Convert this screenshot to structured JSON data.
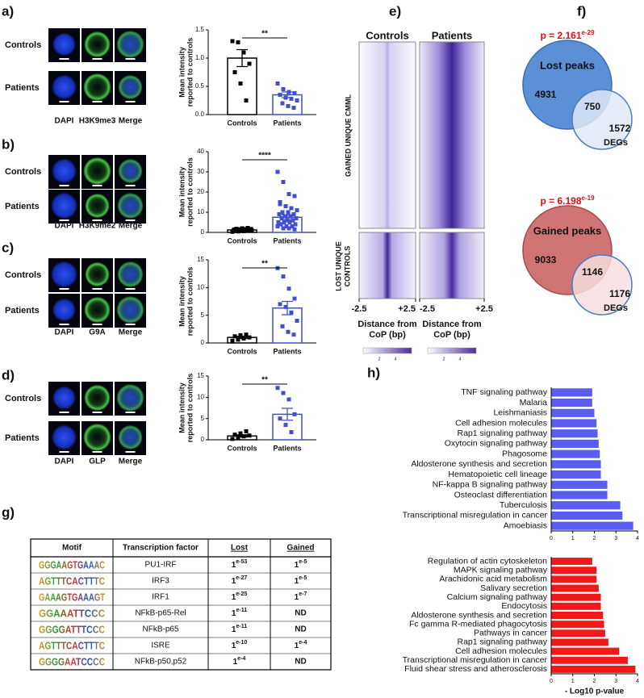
{
  "chart_data": [
    {
      "type": "bar",
      "panel": "a)",
      "ylabel": [
        "Mean intensity",
        "reported to controls"
      ],
      "categories": [
        "Controls",
        "Patients"
      ],
      "colors": [
        "#000000",
        "#3f4fd0"
      ],
      "values": [
        1.0,
        0.35
      ],
      "errors": [
        0.15,
        0.05
      ],
      "points": [
        [
          1.3,
          1.28,
          1.1,
          0.9,
          0.75,
          0.55,
          0.25
        ],
        [
          0.55,
          0.45,
          0.4,
          0.38,
          0.35,
          0.3,
          0.28,
          0.25,
          0.2,
          0.15,
          0.12
        ]
      ],
      "ylim": [
        0,
        1.5
      ],
      "yticks": [
        {
          "value": 0,
          "label": "0.0"
        },
        0.5,
        {
          "value": 1,
          "label": "1.0"
        },
        1.5
      ],
      "annotation": "**"
    },
    {
      "type": "bar",
      "panel": "b)",
      "ylabel": [
        "Mean intensity",
        "reported to controls"
      ],
      "categories": [
        "Controls",
        "Patients"
      ],
      "colors": [
        "#000000",
        "#3f4fd0"
      ],
      "values": [
        1.2,
        7.5
      ],
      "errors": [
        0.15,
        1.2
      ],
      "points": [
        [
          0.3,
          0.5,
          0.6,
          0.8,
          0.9,
          1.0,
          1.0,
          1.1,
          1.2,
          1.2,
          1.3,
          1.4,
          1.5,
          1.6,
          1.7,
          1.8,
          2.0,
          2.2,
          0.7,
          1.1
        ],
        [
          30,
          25,
          19,
          18,
          15,
          13,
          12,
          11,
          10,
          10,
          9,
          9,
          8,
          8,
          7,
          7,
          6,
          6,
          5,
          5,
          5,
          4,
          4,
          3,
          3,
          3,
          2,
          2,
          1.5,
          14
        ]
      ],
      "ylim": [
        0,
        40
      ],
      "yticks": [
        0,
        10,
        20,
        30,
        40
      ],
      "annotation": "****"
    },
    {
      "type": "bar",
      "panel": "c)",
      "ylabel": [
        "Mean intensity",
        "reported to controls"
      ],
      "categories": [
        "Controls",
        "Patients"
      ],
      "colors": [
        "#000000",
        "#3f4fd0"
      ],
      "values": [
        1.0,
        6.3
      ],
      "errors": [
        0.2,
        1.2
      ],
      "points": [
        [
          0.4,
          0.6,
          0.8,
          1.0,
          1.2,
          1.4,
          1.5
        ],
        [
          13.5,
          12,
          9.8,
          8,
          7,
          6.5,
          5.5,
          4,
          3,
          2,
          1.5
        ]
      ],
      "ylim": [
        0,
        15
      ],
      "yticks": [
        0,
        5,
        10,
        15
      ],
      "annotation": "**"
    },
    {
      "type": "bar",
      "panel": "d)",
      "ylabel": [
        "Mean intensity",
        "reported to controls"
      ],
      "categories": [
        "Controls",
        "Patients"
      ],
      "colors": [
        "#000000",
        "#3f4fd0"
      ],
      "values": [
        0.9,
        6.0
      ],
      "errors": [
        0.25,
        1.4
      ],
      "points": [
        [
          0.2,
          0.5,
          0.8,
          1.0,
          1.2,
          1.5,
          2.0
        ],
        [
          12.2,
          11,
          9.5,
          6,
          5,
          3.5,
          1.8
        ]
      ],
      "ylim": [
        0,
        15
      ],
      "yticks": [
        0,
        5,
        10,
        15
      ],
      "annotation": "**"
    },
    {
      "type": "heatmap",
      "panel": "e)",
      "columns": [
        "Controls",
        "Patients"
      ],
      "rows": [
        [
          "GAINED UNIQUE CMML"
        ],
        [
          "LOST UNIQUE",
          "CONTROLS"
        ]
      ],
      "xlim": [
        -2.5,
        2.5
      ],
      "xticks": [
        -2.5,
        {
          "value": 2.5,
          "label": "+2.5"
        }
      ],
      "xlabel": [
        "Distance from",
        "CoP (bp)"
      ],
      "colorbar_ticks": [
        2,
        4
      ],
      "color": "#4b2c9e"
    },
    {
      "type": "hbar",
      "panel": "h)",
      "color": "#5a5ef0",
      "categories": [
        "TNF signaling pathway",
        "Malaria",
        "Leishmaniasis",
        "Cell adhesion molecules",
        "Rap1 signaling pathway",
        "Oxytocin signaling pathway",
        "Phagosome",
        "Aldosterone synthesis and secretion",
        "Hematopoietic cell lineage",
        "NF-kappa B signaling pathway",
        "Osteoclast differentiation",
        "Tuberculosis",
        "Transcriptional misregulation in cancer",
        "Amoebiasis"
      ],
      "values": [
        1.9,
        1.9,
        2.0,
        2.1,
        2.15,
        2.2,
        2.25,
        2.3,
        2.3,
        2.6,
        2.6,
        3.2,
        3.3,
        3.8
      ],
      "xlim": [
        0,
        4
      ],
      "xticks": [
        0,
        1,
        2,
        3,
        4
      ]
    },
    {
      "type": "hbar",
      "color": "#f01818",
      "categories": [
        "Regulation of actin cytoskeleton",
        "MAPK signaling pathway",
        "Arachidonic acid metabolism",
        "Salivary secretion",
        "Calcium signaling pathway",
        "Endocytosis",
        "Aldosterone synthesis and secretion",
        "Fc gamma R-mediated phagocytosis",
        "Pathways in cancer",
        "Rap1 signaling pathway",
        "Cell adhesion molecules",
        "Transcriptional misregulation in cancer",
        "Fluid shear stress and atherosclerosis"
      ],
      "values": [
        1.9,
        2.1,
        2.1,
        2.2,
        2.3,
        2.3,
        2.4,
        2.45,
        2.5,
        2.65,
        3.15,
        3.55,
        3.9
      ],
      "xlim": [
        0,
        4
      ],
      "xticks": [
        0,
        1,
        2,
        3,
        4
      ],
      "xlabel": "- Log10 p-value"
    }
  ],
  "micrographs": [
    {
      "rows": [
        "Controls",
        "Patients"
      ],
      "channels": [
        "DAPI",
        "H3K9me3",
        "Merge"
      ]
    },
    {
      "rows": [
        "Controls",
        "Patients"
      ],
      "channels": [
        "DAPI",
        "H3K9me2",
        "Merge"
      ]
    },
    {
      "rows": [
        "Controls",
        "Patients"
      ],
      "channels": [
        "DAPI",
        "G9A",
        "Merge"
      ]
    },
    {
      "rows": [
        "Controls",
        "Patients"
      ],
      "channels": [
        "DAPI",
        "GLP",
        "Merge"
      ]
    }
  ],
  "venn": [
    {
      "panel": "f)",
      "p_text": "p = 2.161",
      "p_exp": "e-29",
      "set": "Lost peaks",
      "other": "DEGs",
      "only_set": 4931,
      "both": 750,
      "only_other": 1572
    },
    {
      "p_text": "p = 6.198",
      "p_exp": "e-19",
      "set": "Gained peaks",
      "other": "DEGs",
      "only_set": 9033,
      "both": 1146,
      "only_other": 1176
    }
  ],
  "motif_table": {
    "panel": "g)",
    "header": [
      "Motif",
      "Transcription factor",
      "Lost",
      "Gained"
    ],
    "rows": [
      [
        "GGGAAGTGAAAC",
        "PU1-IRF",
        {
          "base": "1",
          "exp": "e-53"
        },
        {
          "base": "1",
          "exp": "e-5"
        }
      ],
      [
        "AGTTTCACTTTC",
        "IRF3",
        {
          "base": "1",
          "exp": "e-27"
        },
        {
          "base": "1",
          "exp": "e-5"
        }
      ],
      [
        "GAAAGTGAAAGT",
        "IRF1",
        {
          "base": "1",
          "exp": "e-25"
        },
        {
          "base": "1",
          "exp": "e-7"
        }
      ],
      [
        "GGAAATTCCC",
        "NFkB-p65-Rel",
        {
          "base": "1",
          "exp": "e-11"
        },
        "ND"
      ],
      [
        "GGGGATTTCCC",
        "NFkB-p65",
        {
          "base": "1",
          "exp": "e-11"
        },
        "ND"
      ],
      [
        "AGTTTCACTTTC",
        "ISRE",
        {
          "base": "1",
          "exp": "e-10"
        },
        {
          "base": "1",
          "exp": "e-4"
        }
      ],
      [
        "GGGGAATCCCC",
        "NFkB-p50,p52",
        {
          "base": "1",
          "exp": "e-4"
        },
        "ND"
      ]
    ]
  }
}
